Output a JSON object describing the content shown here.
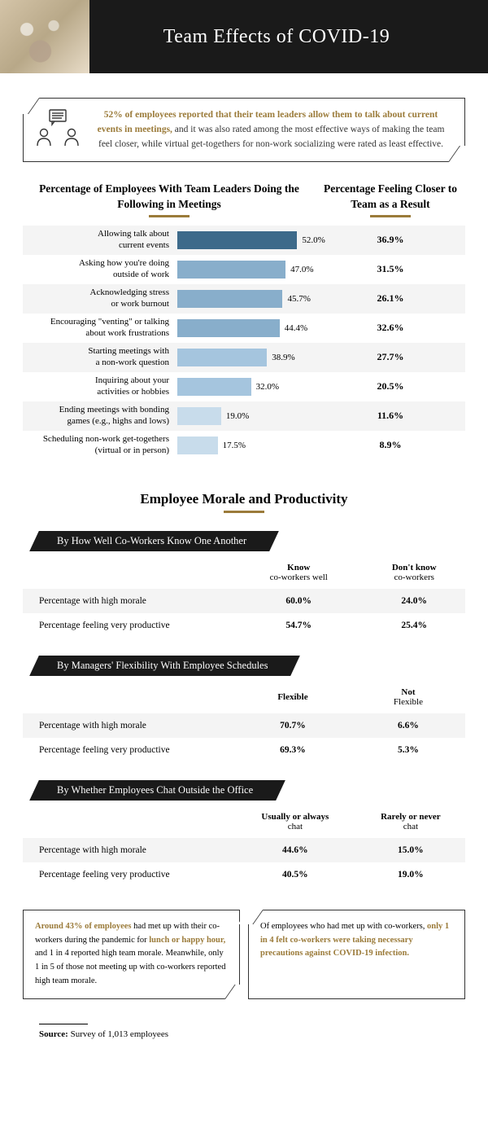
{
  "header": {
    "title": "Team Effects of COVID-19"
  },
  "callout": {
    "lead_highlight": "52% of employees reported that their team leaders allow them to talk about current events in meetings,",
    "rest": " and it was also rated among the most effective ways of making the team feel closer, while virtual get-togethers for non-work socializing were rated as least effective."
  },
  "chart": {
    "left_title": "Percentage of Employees With Team Leaders Doing the Following in Meetings",
    "right_title": "Percentage Feeling Closer to Team as a Result",
    "max": 60,
    "accent_color": "#9b7b3a",
    "rows": [
      {
        "label_l1": "Allowing talk about",
        "label_l2": "current events",
        "pct": 52.0,
        "pct_label": "52.0%",
        "closer": "36.9%",
        "color": "#3d6a8a"
      },
      {
        "label_l1": "Asking how you're doing",
        "label_l2": "outside of work",
        "pct": 47.0,
        "pct_label": "47.0%",
        "closer": "31.5%",
        "color": "#88aecb"
      },
      {
        "label_l1": "Acknowledging stress",
        "label_l2": "or work burnout",
        "pct": 45.7,
        "pct_label": "45.7%",
        "closer": "26.1%",
        "color": "#88aecb"
      },
      {
        "label_l1": "Encouraging \"venting\" or talking",
        "label_l2": "about work frustrations",
        "pct": 44.4,
        "pct_label": "44.4%",
        "closer": "32.6%",
        "color": "#88aecb"
      },
      {
        "label_l1": "Starting meetings with",
        "label_l2": "a non-work question",
        "pct": 38.9,
        "pct_label": "38.9%",
        "closer": "27.7%",
        "color": "#a5c5de"
      },
      {
        "label_l1": "Inquiring about your",
        "label_l2": "activities or hobbies",
        "pct": 32.0,
        "pct_label": "32.0%",
        "closer": "20.5%",
        "color": "#a5c5de"
      },
      {
        "label_l1": "Ending meetings with bonding",
        "label_l2": "games (e.g., highs and lows)",
        "pct": 19.0,
        "pct_label": "19.0%",
        "closer": "11.6%",
        "color": "#c8dceb"
      },
      {
        "label_l1": "Scheduling non-work get-togethers",
        "label_l2": "(virtual or in person)",
        "pct": 17.5,
        "pct_label": "17.5%",
        "closer": "8.9%",
        "color": "#c8dceb"
      }
    ]
  },
  "morale": {
    "title": "Employee Morale and Productivity",
    "tables": [
      {
        "header": "By How Well Co-Workers Know One Another",
        "col1_b": "Know",
        "col1_r": "co-workers well",
        "col2_b": "Don't know",
        "col2_r": "co-workers",
        "rows": [
          {
            "label": "Percentage with high morale",
            "v1": "60.0%",
            "v2": "24.0%"
          },
          {
            "label": "Percentage feeling very productive",
            "v1": "54.7%",
            "v2": "25.4%"
          }
        ]
      },
      {
        "header": "By Managers' Flexibility With Employee Schedules",
        "col1_b": "Flexible",
        "col1_r": "",
        "col2_b": "Not",
        "col2_r": " Flexible",
        "rows": [
          {
            "label": "Percentage with high morale",
            "v1": "70.7%",
            "v2": "6.6%"
          },
          {
            "label": "Percentage feeling very productive",
            "v1": "69.3%",
            "v2": "5.3%"
          }
        ]
      },
      {
        "header": "By Whether Employees Chat Outside the Office",
        "col1_b": "Usually or always",
        "col1_r": " chat",
        "col2_b": "Rarely or never",
        "col2_r": " chat",
        "rows": [
          {
            "label": "Percentage with high morale",
            "v1": "44.6%",
            "v2": "15.0%"
          },
          {
            "label": "Percentage feeling very productive",
            "v1": "40.5%",
            "v2": "19.0%"
          }
        ]
      }
    ]
  },
  "bottom": {
    "box1_h1": "Around 43% of employees",
    "box1_t1": " had met up with their co-workers during the pandemic for ",
    "box1_h2": "lunch or happy hour,",
    "box1_t2": " and 1 in 4 reported high team morale. Meanwhile, only 1 in 5 of those not meeting up with co-workers reported high team morale.",
    "box2_t1": "Of employees who had met up with co-workers, ",
    "box2_h1": "only 1 in 4 felt co-workers were taking necessary precautions against COVID-19 infection."
  },
  "source": {
    "label": "Source:",
    "text": " Survey of 1,013 employees"
  }
}
